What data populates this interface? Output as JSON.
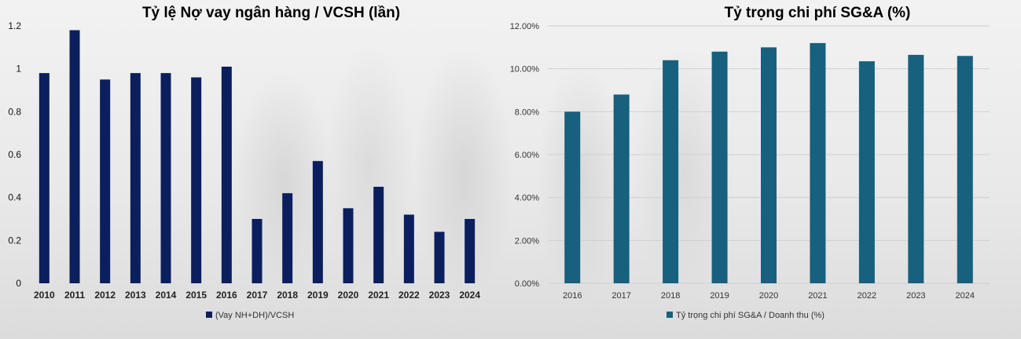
{
  "chart_data": [
    {
      "type": "bar",
      "title": "Tỷ lệ Nợ vay ngân hàng / VCSH (lần)",
      "categories": [
        "2010",
        "2011",
        "2012",
        "2013",
        "2014",
        "2015",
        "2016",
        "2017",
        "2018",
        "2019",
        "2020",
        "2021",
        "2022",
        "2023",
        "2024"
      ],
      "series": [
        {
          "name": "(Vay NH+DH)/VCSH",
          "values": [
            0.98,
            1.18,
            0.95,
            0.98,
            0.98,
            0.96,
            1.01,
            0.3,
            0.42,
            0.57,
            0.35,
            0.45,
            0.32,
            0.24,
            0.3
          ]
        }
      ],
      "yticks": [
        "0",
        "0.2",
        "0.4",
        "0.6",
        "0.8",
        "1",
        "1.2"
      ],
      "ylim": [
        0,
        1.2
      ],
      "grid": false,
      "legend": "bottom",
      "color": "#0b1f5e"
    },
    {
      "type": "bar",
      "title": "Tỷ trọng chi phí SG&A (%)",
      "categories": [
        "2016",
        "2017",
        "2018",
        "2019",
        "2020",
        "2021",
        "2022",
        "2023",
        "2024"
      ],
      "series": [
        {
          "name": "Tỷ trọng chi phí SG&A / Doanh thu (%)",
          "values": [
            8.0,
            8.8,
            10.4,
            10.8,
            11.0,
            11.2,
            10.35,
            10.65,
            10.6
          ]
        }
      ],
      "yticks": [
        "0.00%",
        "2.00%",
        "4.00%",
        "6.00%",
        "8.00%",
        "10.00%",
        "12.00%"
      ],
      "ylim": [
        0,
        12
      ],
      "grid": true,
      "legend": "bottom",
      "color": "#17607e"
    }
  ]
}
